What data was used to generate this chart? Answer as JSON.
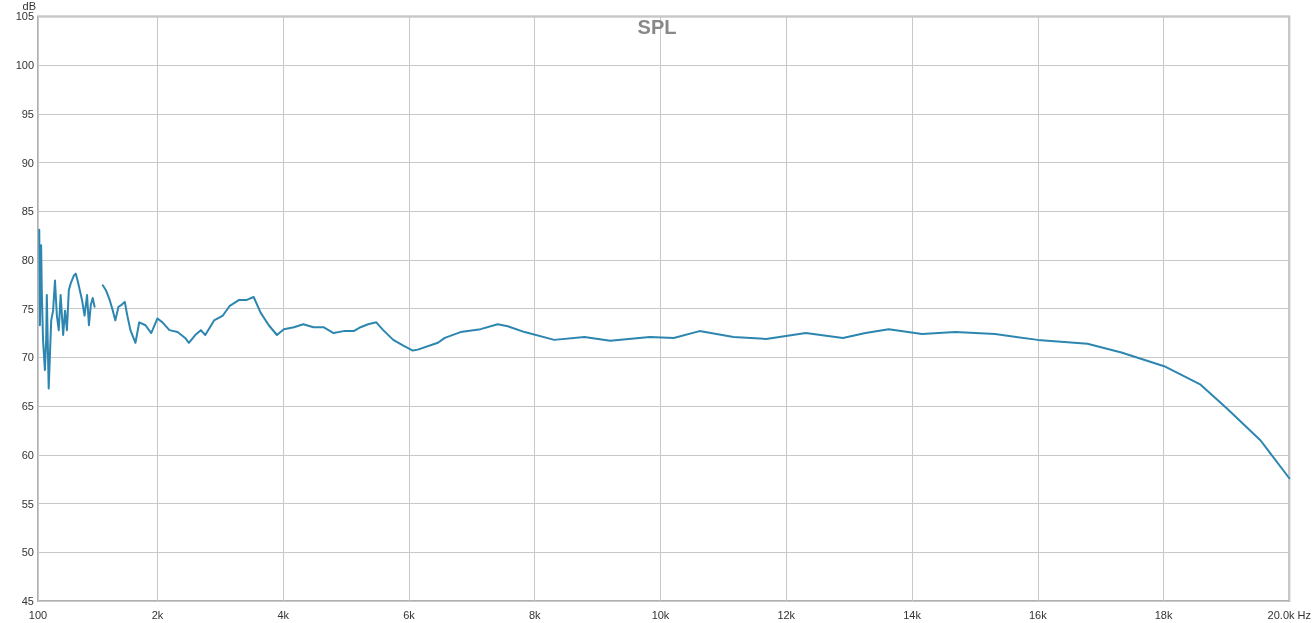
{
  "chart_data": {
    "type": "line",
    "title": "SPL",
    "ylabel": "dB",
    "x": [
      120,
      130,
      150,
      160,
      180,
      210,
      230,
      240,
      270,
      310,
      340,
      370,
      400,
      430,
      460,
      500,
      530,
      560,
      590,
      620,
      670,
      700,
      730,
      800,
      840,
      880,
      910,
      940,
      970,
      1000,
      1070,
      1130,
      1180,
      1240,
      1290,
      1330,
      1380,
      1430,
      1480,
      1520,
      1570,
      1650,
      1710,
      1810,
      1900,
      2000,
      2080,
      2190,
      2320,
      2440,
      2500,
      2600,
      2690,
      2760,
      2900,
      3040,
      3150,
      3300,
      3420,
      3530,
      3640,
      3770,
      3900,
      4010,
      4170,
      4320,
      4480,
      4640,
      4800,
      4960,
      5120,
      5230,
      5350,
      5480,
      5590,
      5750,
      5910,
      6060,
      6140,
      6460,
      6570,
      6820,
      7140,
      7410,
      7570,
      7840,
      8310,
      8790,
      9200,
      9830,
      10210,
      10620,
      11160,
      11680,
      12310,
      12900,
      13260,
      13630,
      14160,
      14690,
      15320,
      16000,
      16790,
      17330,
      18010,
      18590,
      19000,
      19540,
      20000
    ],
    "series": [
      {
        "color": "#2c86b0",
        "values": [
          83.1,
          73.3,
          81.5,
          76.9,
          71.8,
          68.7,
          71.8,
          76.4,
          66.8,
          73.8,
          74.8,
          77.9,
          74.3,
          72.8,
          76.4,
          72.3,
          74.8,
          72.8,
          76.9,
          77.6,
          78.4,
          78.6,
          77.9,
          75.9,
          74.3,
          76.4,
          73.3,
          75.4,
          76.1,
          75.2,
          null,
          77.4,
          76.9,
          75.9,
          74.8,
          73.8,
          75.2,
          75.4,
          75.7,
          74.3,
          72.8,
          71.5,
          73.6,
          73.3,
          72.5,
          74.0,
          73.6,
          72.8,
          72.6,
          72.0,
          71.5,
          72.3,
          72.8,
          72.3,
          73.8,
          74.3,
          75.3,
          75.9,
          75.9,
          76.2,
          74.6,
          73.3,
          72.3,
          72.9,
          73.1,
          73.4,
          73.1,
          73.1,
          72.5,
          72.7,
          72.7,
          73.1,
          73.4,
          73.6,
          72.8,
          71.8,
          71.2,
          70.7,
          70.8,
          71.5,
          72.0,
          72.6,
          72.9,
          73.4,
          73.2,
          72.6,
          71.8,
          72.1,
          71.7,
          72.1,
          72.0,
          72.7,
          72.1,
          71.9,
          72.5,
          72.0,
          72.5,
          72.9,
          72.4,
          72.6,
          72.4,
          71.8,
          71.4,
          70.5,
          69.1,
          67.2,
          64.8,
          61.5,
          57.6
        ]
      }
    ],
    "xlim": [
      100,
      20000
    ],
    "xticks": [
      100,
      {
        "value": 2000,
        "label": "2k"
      },
      {
        "value": 4000,
        "label": "4k"
      },
      {
        "value": 6000,
        "label": "6k"
      },
      {
        "value": 8000,
        "label": "8k"
      },
      {
        "value": 10000,
        "label": "10k"
      },
      {
        "value": 12000,
        "label": "12k"
      },
      {
        "value": 14000,
        "label": "14k"
      },
      {
        "value": 16000,
        "label": "16k"
      },
      {
        "value": 18000,
        "label": "18k"
      },
      {
        "value": 20000,
        "label": "20.0k Hz"
      }
    ],
    "ylim": [
      45,
      105
    ],
    "yticks": [
      45,
      50,
      55,
      60,
      65,
      70,
      75,
      80,
      85,
      90,
      95,
      100,
      105
    ],
    "grid": true,
    "marker": "none",
    "line_style": "solid"
  }
}
